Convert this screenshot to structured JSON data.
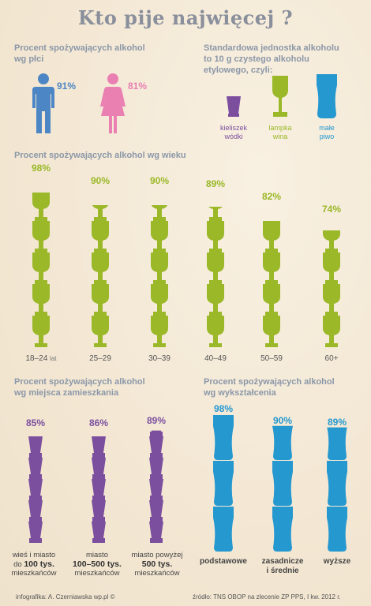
{
  "title": "Kto pije najwięcej ?",
  "colors": {
    "lime": "#9ab828",
    "purple": "#7b4f9e",
    "blue": "#2598d0",
    "man": "#4d86c4",
    "woman": "#ea7fb2",
    "heading": "#8b97a8"
  },
  "gender": {
    "heading_line1": "Procent spożywających alkohol",
    "heading_line2": "wg płci",
    "men_pct": "91%",
    "women_pct": "81%",
    "men_icon": "man-icon",
    "women_icon": "woman-icon"
  },
  "units": {
    "heading_line1": "Standardowa jednostka alkoholu",
    "heading_line2": "to 10 g czystego alkoholu",
    "heading_line3": "etylowego, czyli:",
    "items": [
      {
        "icon": "shot-glass-icon",
        "line1": "kieliszek",
        "line2": "wódki"
      },
      {
        "icon": "wine-glass-icon",
        "line1": "lampka",
        "line2": "wina"
      },
      {
        "icon": "beer-glass-icon",
        "line1": "małe",
        "line2": "piwo"
      }
    ]
  },
  "age": {
    "heading": "Procent spożywających alkohol wg wieku",
    "groups": [
      {
        "pct": "98%",
        "label": "18–24",
        "suffix": "lat",
        "value": 98
      },
      {
        "pct": "90%",
        "label": "25–29",
        "suffix": "",
        "value": 90
      },
      {
        "pct": "90%",
        "label": "30–39",
        "suffix": "",
        "value": 90
      },
      {
        "pct": "89%",
        "label": "40–49",
        "suffix": "",
        "value": 89
      },
      {
        "pct": "82%",
        "label": "50–59",
        "suffix": "",
        "value": 82
      },
      {
        "pct": "74%",
        "label": "60+",
        "suffix": "",
        "value": 74
      }
    ]
  },
  "place": {
    "heading_line1": "Procent spożywających alkohol",
    "heading_line2": "wg miejsca zamieszkania",
    "groups": [
      {
        "pct": "85%",
        "value": 85,
        "line1": "wieś i miasto",
        "line2_pre": "do ",
        "line2_bold": "100 tys.",
        "line3": "mieszkańców"
      },
      {
        "pct": "86%",
        "value": 86,
        "line1": "miasto",
        "line2_pre": "",
        "line2_bold": "100–500 tys.",
        "line3": "mieszkańców"
      },
      {
        "pct": "89%",
        "value": 89,
        "line1": "miasto powyżej",
        "line2_pre": "",
        "line2_bold": "500 tys.",
        "line3": "mieszkańców"
      }
    ]
  },
  "education": {
    "heading_line1": "Procent spożywających alkohol",
    "heading_line2": "wg wykształcenia",
    "groups": [
      {
        "pct": "98%",
        "value": 98,
        "line1": "podstawowe",
        "line2": ""
      },
      {
        "pct": "90%",
        "value": 90,
        "line1": "zasadnicze",
        "line2": "i średnie"
      },
      {
        "pct": "89%",
        "value": 89,
        "line1": "wyższe",
        "line2": ""
      }
    ]
  },
  "footer": {
    "credit_label": "infografika:",
    "credit_name": "A. Czerniawska wp.pl ©",
    "source": "źródło: TNS OBOP na zlecenie ZP PPS, I kw. 2012 r."
  }
}
